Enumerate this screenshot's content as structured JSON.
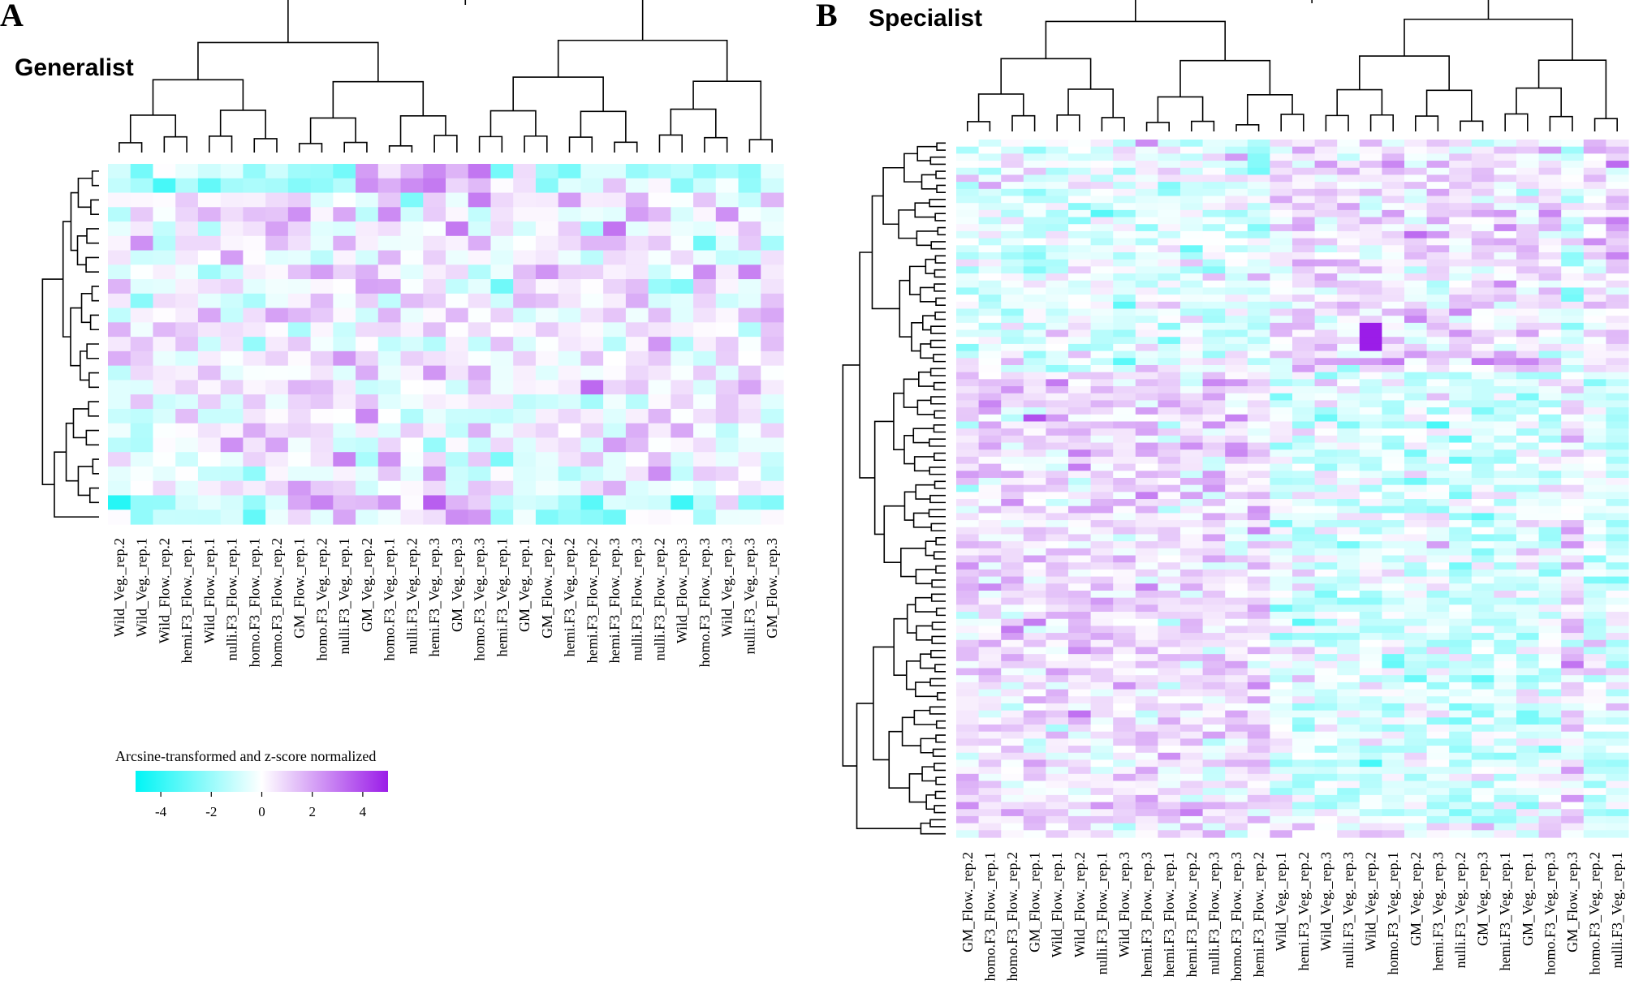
{
  "chart_data": [
    {
      "type": "heatmap",
      "panel_letter": "A",
      "title": "Generalist",
      "columns": [
        "Wild_Veg._rep.2",
        "Wild_Veg._rep.1",
        "Wild_Flow._rep.2",
        "hemi.F3_Flow._rep.1",
        "Wild_Flow._rep.1",
        "nulli.F3_Flow._rep.1",
        "homo.F3_Flow._rep.1",
        "homo.F3_Flow._rep.2",
        "GM_Flow._rep.1",
        "homo.F3_Veg._rep.2",
        "nulli.F3_Veg._rep.1",
        "GM_Veg._rep.2",
        "homo.F3_Veg._rep.1",
        "nulli.F3_Veg._rep.2",
        "hemi.F3_Veg._rep.3",
        "GM_Veg._rep.3",
        "homo.F3_Veg._rep.3",
        "hemi.F3_Veg._rep.1",
        "GM_Veg._rep.1",
        "GM_Flow._rep.2",
        "hemi.F3_Veg._rep.2",
        "hemi.F3_Flow._rep.2",
        "hemi.F3_Flow._rep.3",
        "nulli.F3_Flow._rep.3",
        "nulli.F3_Flow._rep.2",
        "Wild_Flow._rep.3",
        "homo.F3_Flow._rep.3",
        "Wild_Veg._rep.3",
        "nulli.F3_Veg._rep.3",
        "GM_Flow._rep.3"
      ],
      "n_rows": 25,
      "value_range": [
        -5,
        5
      ],
      "row_clusters": [
        {
          "start": 0,
          "end": 2,
          "bias": -0.6
        },
        {
          "start": 2,
          "end": 23,
          "bias": 0.3
        },
        {
          "start": 23,
          "end": 25,
          "bias": -0.8
        }
      ]
    },
    {
      "type": "heatmap",
      "panel_letter": "B",
      "title": "Specialist",
      "columns": [
        "GM_Flow._rep.2",
        "homo.F3_Flow._rep.1",
        "homo.F3_Flow._rep.2",
        "GM_Flow._rep.1",
        "Wild_Flow._rep.1",
        "Wild_Flow._rep.2",
        "nulli.F3_Flow._rep.1",
        "Wild_Flow._rep.3",
        "hemi.F3_Flow._rep.3",
        "hemi.F3_Flow._rep.1",
        "hemi.F3_Flow._rep.2",
        "nulli.F3_Flow._rep.3",
        "homo.F3_Flow._rep.3",
        "hemi.F3_Flow._rep.2",
        "Wild_Veg._rep.1",
        "hemi.F3_Veg._rep.2",
        "Wild_Veg._rep.3",
        "nulli.F3_Veg._rep.3",
        "Wild_Veg._rep.2",
        "homo.F3_Veg._rep.1",
        "GM_Veg._rep.2",
        "hemi.F3_Veg._rep.3",
        "nulli.F3_Veg._rep.2",
        "GM_Veg._rep.3",
        "hemi.F3_Veg._rep.1",
        "GM_Veg._rep.1",
        "homo.F3_Veg._rep.3",
        "GM_Flow._rep.3",
        "homo.F3_Veg._rep.2",
        "nulli.F3_Veg._rep.1"
      ],
      "n_rows": 99,
      "value_range": [
        -5,
        5
      ],
      "row_clusters": [
        {
          "start": 0,
          "end": 33,
          "veg_bias": 0.6,
          "flow_bias": -0.6
        },
        {
          "start": 33,
          "end": 97,
          "veg_bias": -0.7,
          "flow_bias": 0.7
        },
        {
          "start": 97,
          "end": 99,
          "veg_bias": 0.2,
          "flow_bias": 0.2
        }
      ]
    }
  ],
  "legend": {
    "title": "Arcsine-transformed and z-score normalized",
    "ticks": [
      -4,
      -2,
      0,
      2,
      4
    ],
    "range": [
      -5,
      5
    ],
    "colors": {
      "low": "#00f5f5",
      "mid": "#ffffff",
      "high": "#9b1de8"
    }
  }
}
